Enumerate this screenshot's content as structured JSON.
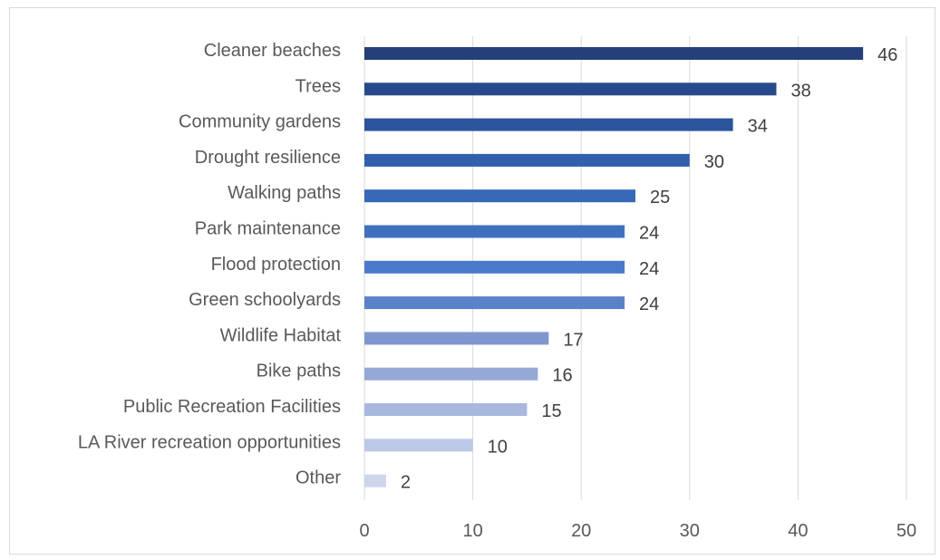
{
  "chart_data": {
    "type": "bar",
    "orientation": "horizontal",
    "categories": [
      "Cleaner beaches",
      "Trees",
      "Community gardens",
      "Drought resilience",
      "Walking paths",
      "Park maintenance",
      "Flood protection",
      "Green schoolyards",
      "Wildlife Habitat",
      "Bike paths",
      "Public Recreation Facilities",
      "LA River recreation opportunities",
      "Other"
    ],
    "values": [
      46,
      38,
      34,
      30,
      25,
      24,
      24,
      24,
      17,
      16,
      15,
      10,
      2
    ],
    "colors": [
      "#243f7a",
      "#284a8c",
      "#2c559c",
      "#3060ac",
      "#3868b8",
      "#3f70c0",
      "#4a7acc",
      "#5a82c8",
      "#7f96cf",
      "#95a8d6",
      "#a8b8de",
      "#bcc8e6",
      "#cdd6ed"
    ],
    "xlim": [
      0,
      50
    ],
    "xticks": [
      "0",
      "10",
      "20",
      "30",
      "40",
      "50"
    ],
    "grid": true,
    "data_labels": true,
    "title": "",
    "xlabel": "",
    "ylabel": ""
  }
}
